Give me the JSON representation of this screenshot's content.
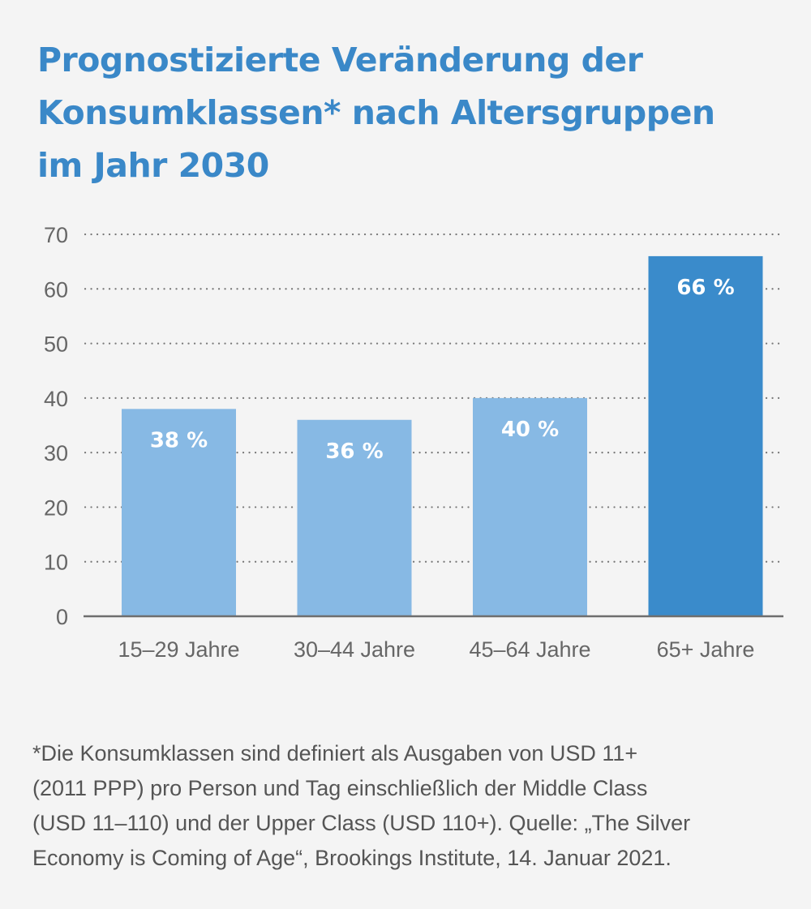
{
  "title_lines": [
    "Prognostizierte Veränderung der",
    "Konsumklassen* nach Altersgruppen",
    "im Jahr 2030"
  ],
  "footnote_lines": [
    "*Die Konsumklassen sind definiert als Ausgaben von USD 11+",
    "(2011 PPP) pro Person und Tag einschließlich der Middle Class",
    "(USD 11–110) und der Upper Class (USD 110+). Quelle: „The Silver",
    "Economy is Coming of Age“, Brookings Institute, 14. Januar 2021."
  ],
  "colors": {
    "title": "#3a88c8",
    "bar_light": "#87b9e4",
    "bar_highlight": "#3a8bcb",
    "bar_label": "#ffffff",
    "grid": "#777777",
    "tick_text": "#666666",
    "footnote_text": "#555555",
    "background": "#f4f4f4"
  },
  "chart_data": {
    "type": "bar",
    "title": "Prognostizierte Veränderung der Konsumklassen* nach Altersgruppen im Jahr 2030",
    "categories": [
      "15–29 Jahre",
      "30–44 Jahre",
      "45–64 Jahre",
      "65+ Jahre"
    ],
    "values": [
      38,
      36,
      40,
      66
    ],
    "data_labels": [
      "38 %",
      "36 %",
      "40 %",
      "66 %"
    ],
    "highlight_index": 3,
    "ylim": [
      0,
      70
    ],
    "yticks": [
      0,
      10,
      20,
      30,
      40,
      50,
      60,
      70
    ],
    "xlabel": "",
    "ylabel": "",
    "grid": true,
    "grid_style": "dotted"
  }
}
